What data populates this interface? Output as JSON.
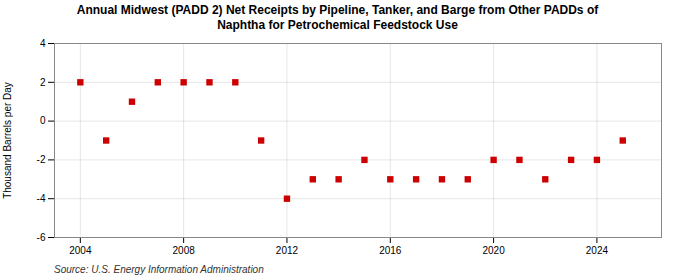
{
  "chart_data": {
    "type": "scatter",
    "title": "Annual Midwest (PADD 2) Net Receipts by Pipeline, Tanker, and Barge from Other PADDs of\nNaphtha for Petrochemical Feedstock Use",
    "ylabel": "Thousand Barrels per Day",
    "source": "Source: U.S. Energy Information Administration",
    "x": [
      2004,
      2005,
      2006,
      2007,
      2008,
      2009,
      2010,
      2011,
      2012,
      2013,
      2014,
      2015,
      2016,
      2017,
      2018,
      2019,
      2020,
      2021,
      2022,
      2023,
      2024,
      2025
    ],
    "values": [
      2,
      -1,
      1,
      2,
      2,
      2,
      2,
      -1,
      -4,
      -3,
      -3,
      -2,
      -3,
      -3,
      -3,
      -3,
      -2,
      -2,
      -3,
      -2,
      -2,
      -1
    ],
    "color": "#cc0000",
    "marker": "square",
    "xlim": [
      2003.0,
      2026.5
    ],
    "xticks": [
      2004,
      2008,
      2012,
      2016,
      2020,
      2024
    ],
    "ylim": [
      -6,
      4
    ],
    "yticks": [
      -6,
      -4,
      -2,
      0,
      2,
      4
    ],
    "grid": true
  }
}
